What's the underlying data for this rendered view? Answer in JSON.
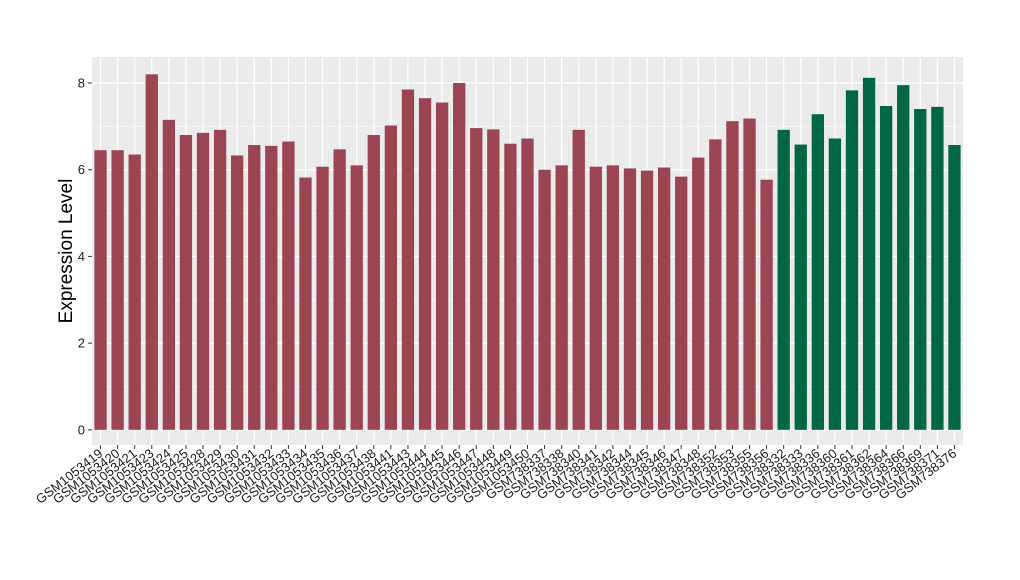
{
  "chart_data": {
    "type": "bar",
    "title": "",
    "xlabel": "",
    "ylabel": "Expression Level",
    "ylim": [
      -0.35,
      8.6
    ],
    "yticks": [
      0,
      2,
      4,
      6,
      8
    ],
    "grid": true,
    "legend": "none",
    "colors": {
      "group1": "#9b4452",
      "group2": "#006644",
      "panel": "#ebebeb",
      "grid": "#ffffff"
    },
    "categories": [
      "GSM1053419",
      "GSM1053420",
      "GSM1053421",
      "GSM1053423",
      "GSM1053424",
      "GSM1053425",
      "GSM1053428",
      "GSM1053429",
      "GSM1053430",
      "GSM1053431",
      "GSM1053432",
      "GSM1053433",
      "GSM1053434",
      "GSM1053435",
      "GSM1053436",
      "GSM1053437",
      "GSM1053438",
      "GSM1053441",
      "GSM1053443",
      "GSM1053444",
      "GSM1053445",
      "GSM1053446",
      "GSM1053447",
      "GSM1053448",
      "GSM1053449",
      "GSM1053450",
      "GSM738337",
      "GSM738338",
      "GSM738340",
      "GSM738341",
      "GSM738342",
      "GSM738344",
      "GSM738345",
      "GSM738346",
      "GSM738347",
      "GSM738348",
      "GSM738352",
      "GSM738353",
      "GSM738355",
      "GSM738356",
      "GSM738332",
      "GSM738333",
      "GSM738336",
      "GSM738360",
      "GSM738361",
      "GSM738362",
      "GSM738364",
      "GSM738366",
      "GSM738369",
      "GSM738371",
      "GSM738376"
    ],
    "values": [
      6.45,
      6.45,
      6.35,
      8.2,
      7.15,
      6.8,
      6.85,
      6.92,
      6.33,
      6.57,
      6.55,
      6.65,
      5.82,
      6.07,
      6.47,
      6.1,
      6.8,
      7.02,
      7.85,
      7.65,
      7.55,
      8.0,
      6.96,
      6.93,
      6.6,
      6.72,
      6.0,
      6.1,
      6.92,
      6.07,
      6.1,
      6.03,
      5.98,
      6.05,
      5.84,
      6.28,
      6.7,
      7.12,
      7.18,
      5.77,
      6.92,
      6.58,
      7.28,
      6.72,
      7.83,
      8.12,
      7.47,
      7.95,
      7.4,
      7.45,
      6.57
    ],
    "groups": [
      1,
      1,
      1,
      1,
      1,
      1,
      1,
      1,
      1,
      1,
      1,
      1,
      1,
      1,
      1,
      1,
      1,
      1,
      1,
      1,
      1,
      1,
      1,
      1,
      1,
      1,
      1,
      1,
      1,
      1,
      1,
      1,
      1,
      1,
      1,
      1,
      1,
      1,
      1,
      1,
      2,
      2,
      2,
      2,
      2,
      2,
      2,
      2,
      2,
      2,
      2
    ]
  }
}
